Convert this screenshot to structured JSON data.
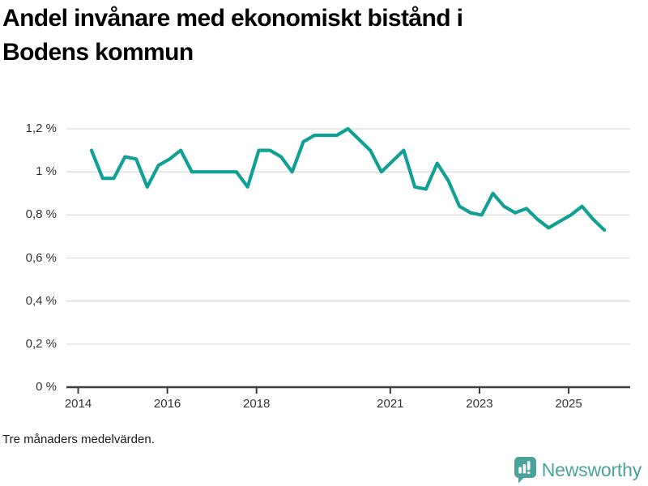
{
  "header": {
    "title_line1": "Andel invånare med ekonomiskt bistånd i",
    "title_line2": "Bodens kommun"
  },
  "footer": {
    "note": "Tre månaders medelvärden.",
    "brand": "Newsworthy"
  },
  "colors": {
    "line": "#10a095",
    "brand_teal": "#4ba29b",
    "grid": "#dddddd",
    "axis": "#3d3d3d",
    "tick_text": "#333333"
  },
  "chart_data": {
    "type": "line",
    "title": "Andel invånare med ekonomiskt bistånd i Bodens kommun",
    "note": "Tre månaders medelvärden.",
    "unit": "%",
    "grid": true,
    "legend": "none",
    "xlim": [
      2013.74,
      2026.4
    ],
    "ylim": [
      0,
      1.26
    ],
    "x_ticks": [
      {
        "value": 2014,
        "label": "2014"
      },
      {
        "value": 2016,
        "label": "2016"
      },
      {
        "value": 2018,
        "label": "2018"
      },
      {
        "value": 2021,
        "label": "2021"
      },
      {
        "value": 2023,
        "label": "2023"
      },
      {
        "value": 2025,
        "label": "2025"
      }
    ],
    "y_ticks": [
      {
        "value": 0,
        "label": "0 %"
      },
      {
        "value": 0.2,
        "label": "0,2 %"
      },
      {
        "value": 0.4,
        "label": "0,4 %"
      },
      {
        "value": 0.6,
        "label": "0,6 %"
      },
      {
        "value": 0.8,
        "label": "0,8 %"
      },
      {
        "value": 1.0,
        "label": "1 %"
      },
      {
        "value": 1.2,
        "label": "1,2 %"
      }
    ],
    "series": [
      {
        "name": "Andel invånare med ekonomiskt bistånd, Bodens kommun (3-mån medelvärde, %)",
        "x": [
          2014.3,
          2014.55,
          2014.8,
          2015.05,
          2015.3,
          2015.55,
          2015.8,
          2016.05,
          2016.3,
          2016.55,
          2016.8,
          2017.05,
          2017.3,
          2017.55,
          2017.8,
          2018.05,
          2018.3,
          2018.55,
          2018.8,
          2019.05,
          2019.3,
          2019.55,
          2019.8,
          2020.05,
          2020.3,
          2020.55,
          2020.8,
          2021.05,
          2021.3,
          2021.55,
          2021.8,
          2022.05,
          2022.3,
          2022.55,
          2022.8,
          2023.05,
          2023.3,
          2023.55,
          2023.8,
          2024.05,
          2024.3,
          2024.55,
          2024.8,
          2025.05,
          2025.3,
          2025.55,
          2025.8
        ],
        "values": [
          1.1,
          0.97,
          0.97,
          1.07,
          1.06,
          0.93,
          1.03,
          1.06,
          1.1,
          1.0,
          1.0,
          1.0,
          1.0,
          1.0,
          0.93,
          1.1,
          1.1,
          1.07,
          1.0,
          1.14,
          1.17,
          1.17,
          1.17,
          1.2,
          1.15,
          1.1,
          1.0,
          1.05,
          1.1,
          0.93,
          0.92,
          1.04,
          0.96,
          0.84,
          0.81,
          0.8,
          0.9,
          0.84,
          0.81,
          0.83,
          0.78,
          0.74,
          0.77,
          0.8,
          0.84,
          0.78,
          0.73
        ]
      }
    ]
  }
}
